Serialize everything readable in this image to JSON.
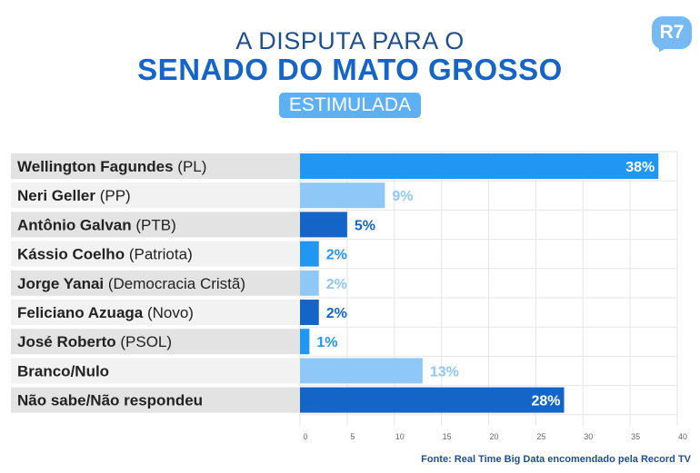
{
  "header": {
    "title_line1": "A DISPUTA PARA O",
    "title_line2": "SENADO DO MATO GROSSO",
    "subtitle": "ESTIMULADA",
    "logo": "R7"
  },
  "colors": {
    "dark_blue": "#1565c8",
    "medium_blue": "#2196f3",
    "light_blue": "#8dc8f8",
    "label_bg_dark": "#e3e3e3",
    "label_bg_light": "#f2f2f2"
  },
  "chart_data": {
    "type": "bar",
    "orientation": "horizontal",
    "categories": [
      {
        "name": "Wellington Fagundes",
        "party": "(PL)"
      },
      {
        "name": "Neri Geller",
        "party": "(PP)"
      },
      {
        "name": "Antônio Galvan",
        "party": "(PTB)"
      },
      {
        "name": "Kássio Coelho",
        "party": "(Patriota)"
      },
      {
        "name": "Jorge Yanai",
        "party": "(Democracia Cristã)"
      },
      {
        "name": "Feliciano Azuaga",
        "party": "(Novo)"
      },
      {
        "name": "José Roberto",
        "party": "(PSOL)"
      },
      {
        "name": "Branco/Nulo",
        "party": ""
      },
      {
        "name": "Não sabe/Não respondeu",
        "party": ""
      }
    ],
    "values": [
      38,
      9,
      5,
      2,
      2,
      2,
      1,
      13,
      28
    ],
    "value_labels": [
      "38%",
      "9%",
      "5%",
      "2%",
      "2%",
      "2%",
      "1%",
      "13%",
      "28%"
    ],
    "bar_colors": [
      "#2196f3",
      "#8dc8f8",
      "#1565c8",
      "#2196f3",
      "#8dc8f8",
      "#1565c8",
      "#2196f3",
      "#8dc8f8",
      "#1565c8"
    ],
    "xlim": [
      0,
      40
    ],
    "xticks": [
      0,
      5,
      10,
      15,
      20,
      25,
      30,
      35,
      40
    ],
    "grid": true
  },
  "footer": {
    "source": "Fonte: Real Time Big Data encomendado pela Record TV"
  }
}
